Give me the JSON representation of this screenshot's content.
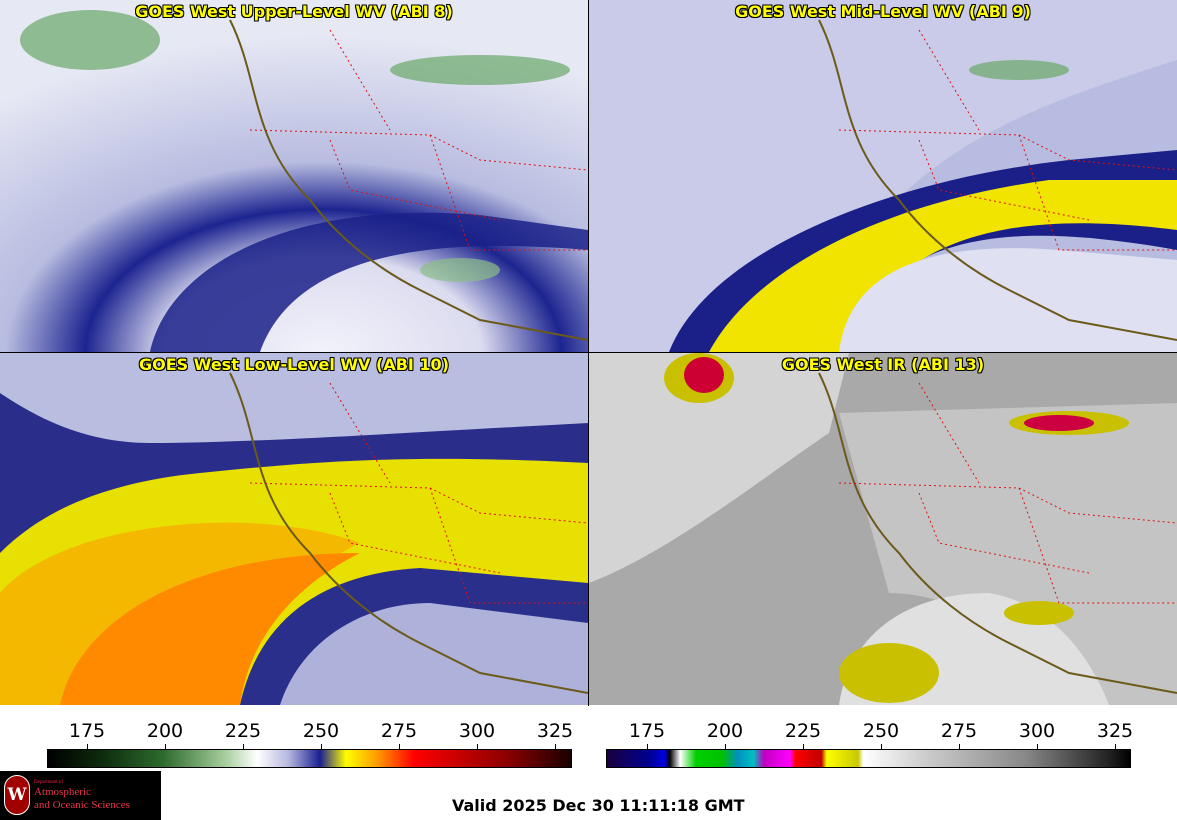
{
  "panels": [
    {
      "title": "GOES West Upper-Level WV (ABI 8)"
    },
    {
      "title": "GOES West Mid-Level WV (ABI 9)"
    },
    {
      "title": "GOES West Low-Level WV (ABI 10)"
    },
    {
      "title": "GOES West IR (ABI 13)"
    }
  ],
  "colorbars": [
    {
      "ticks": [
        "175",
        "200",
        "225",
        "250",
        "275",
        "300",
        "325"
      ]
    },
    {
      "ticks": [
        "175",
        "200",
        "225",
        "250",
        "275",
        "300",
        "325"
      ]
    }
  ],
  "logo": {
    "dept_line": "Department of",
    "line1": "Atmospheric",
    "line2": "and Oceanic Sciences",
    "seal_letter": "W"
  },
  "valid_time": "Valid 2025 Dec 30 11:11:18 GMT"
}
